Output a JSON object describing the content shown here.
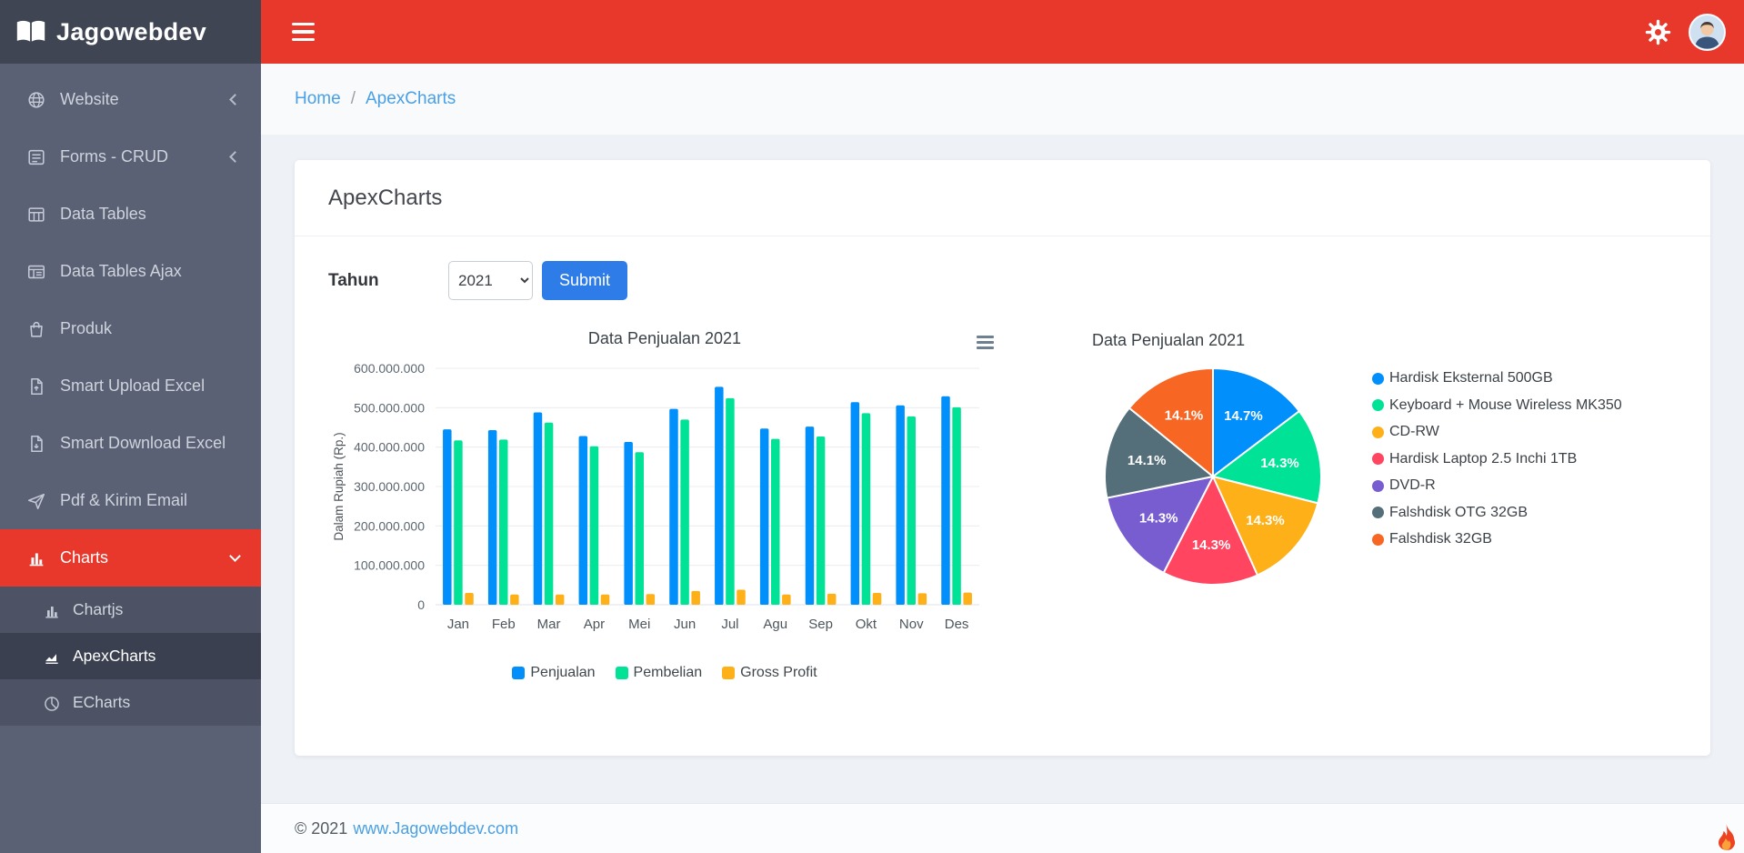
{
  "brand": {
    "name": "Jagowebdev"
  },
  "sidebar": {
    "items": [
      {
        "label": "Website",
        "icon": "globe-icon",
        "chevron": "left"
      },
      {
        "label": "Forms - CRUD",
        "icon": "form-icon",
        "chevron": "left"
      },
      {
        "label": "Data Tables",
        "icon": "table-icon"
      },
      {
        "label": "Data Tables Ajax",
        "icon": "table-ajax-icon"
      },
      {
        "label": "Produk",
        "icon": "product-bag-icon"
      },
      {
        "label": "Smart Upload Excel",
        "icon": "file-upload-icon"
      },
      {
        "label": "Smart Download Excel",
        "icon": "file-download-icon"
      },
      {
        "label": "Pdf & Kirim Email",
        "icon": "paper-plane-icon"
      },
      {
        "label": "Charts",
        "icon": "bar-chart-icon",
        "chevron": "down",
        "active": true,
        "children": [
          {
            "label": "Chartjs",
            "icon": "bar-chart-icon"
          },
          {
            "label": "ApexCharts",
            "icon": "area-chart-icon",
            "selected": true
          },
          {
            "label": "ECharts",
            "icon": "pie-chart-icon"
          }
        ]
      }
    ]
  },
  "breadcrumb": {
    "separator": "/",
    "items": [
      {
        "label": "Home"
      },
      {
        "label": "ApexCharts"
      }
    ]
  },
  "page": {
    "title": "ApexCharts"
  },
  "form": {
    "year_label": "Tahun",
    "year_value": "2021",
    "submit_label": "Submit"
  },
  "footer": {
    "copyright": "© 2021",
    "link": "www.Jagowebdev.com"
  },
  "chart_data": [
    {
      "type": "bar",
      "title": "Data Penjualan 2021",
      "ylabel": "Dalam Rupiah (Rp.)",
      "categories": [
        "Jan",
        "Feb",
        "Mar",
        "Apr",
        "Mei",
        "Jun",
        "Jul",
        "Agu",
        "Sep",
        "Okt",
        "Nov",
        "Des"
      ],
      "series": [
        {
          "name": "Penjualan",
          "color": "#008FFB",
          "values": [
            445000000,
            443000000,
            488000000,
            428000000,
            413000000,
            497000000,
            553000000,
            447000000,
            452000000,
            514000000,
            506000000,
            529000000
          ]
        },
        {
          "name": "Pembelian",
          "color": "#00E396",
          "values": [
            417000000,
            419000000,
            462000000,
            402000000,
            387000000,
            470000000,
            524000000,
            421000000,
            427000000,
            486000000,
            478000000,
            501000000
          ]
        },
        {
          "name": "Gross Profit",
          "color": "#FEB019",
          "values": [
            30000000,
            26000000,
            26000000,
            26000000,
            27000000,
            35000000,
            38000000,
            26000000,
            28000000,
            30000000,
            29000000,
            31000000
          ]
        }
      ],
      "ylim": [
        0,
        600000000
      ],
      "ytick_labels": [
        "0",
        "100.000.000",
        "200.000.000",
        "300.000.000",
        "400.000.000",
        "500.000.000",
        "600.000.000"
      ],
      "grid": true,
      "legend_position": "bottom"
    },
    {
      "type": "pie",
      "title": "Data Penjualan 2021",
      "labels": [
        "Hardisk Eksternal 500GB",
        "Keyboard + Mouse Wireless MK350",
        "CD-RW",
        "Hardisk Laptop 2.5 Inchi 1TB",
        "DVD-R",
        "Falshdisk OTG 32GB",
        "Falshdisk 32GB"
      ],
      "values": [
        14.7,
        14.3,
        14.3,
        14.3,
        14.3,
        14.1,
        14.1
      ],
      "value_labels": [
        "14.7%",
        "14.3%",
        "14.3%",
        "14.3%",
        "14.3%",
        "14.1%",
        "14.1%"
      ],
      "colors": [
        "#008FFB",
        "#00E396",
        "#FEB019",
        "#FF4560",
        "#775DD0",
        "#546E7A",
        "#F86624"
      ],
      "legend_position": "right"
    }
  ]
}
